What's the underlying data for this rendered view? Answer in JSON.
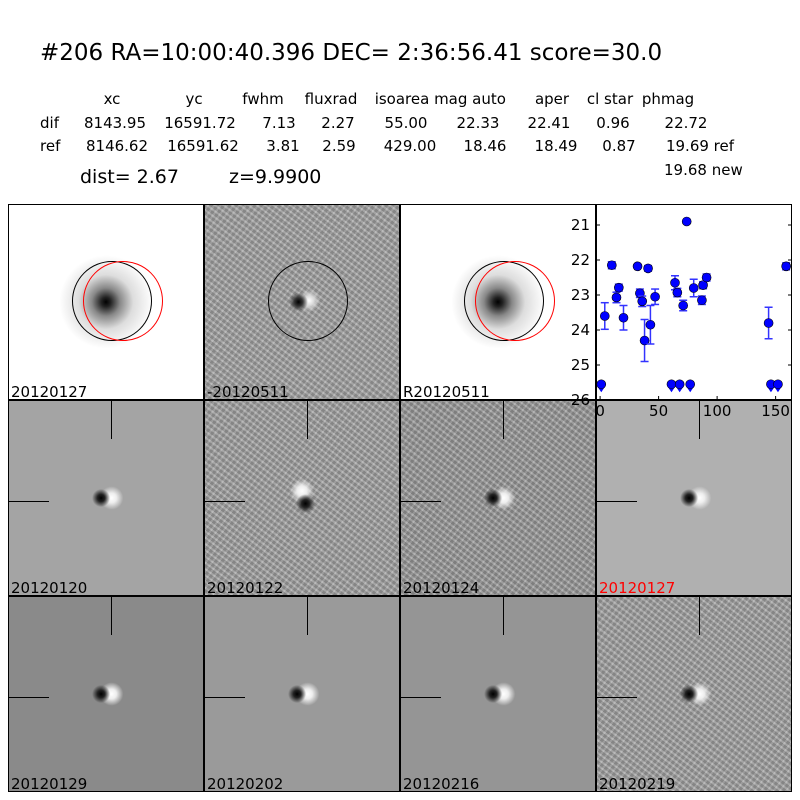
{
  "title": "#206   RA=10:00:40.396 DEC= 2:36:56.41      score=30.0",
  "table": {
    "headers": [
      "xc",
      "yc",
      "fwhm",
      "fluxrad",
      "isoarea",
      "mag auto",
      "aper",
      "cl star",
      "phmag"
    ],
    "rows": [
      {
        "label": "dif",
        "values": [
          "8143.95",
          "16591.72",
          "7.13",
          "2.27",
          "55.00",
          "22.33",
          "22.41",
          "0.96",
          "22.72"
        ]
      },
      {
        "label": "ref",
        "values": [
          "8146.62",
          "16591.62",
          "3.81",
          "2.59",
          "429.00",
          "18.46",
          "18.49",
          "0.87",
          "19.69 ref"
        ]
      }
    ],
    "extra": "19.68 new",
    "dist": "dist=  2.67",
    "z": "z=9.9900"
  },
  "panels": [
    {
      "label": "20120127",
      "color": "#000000"
    },
    {
      "label": "-20120511",
      "color": "#000000"
    },
    {
      "label": "R20120511",
      "color": "#000000"
    },
    {
      "label": "20120120",
      "color": "#000000"
    },
    {
      "label": "20120122",
      "color": "#000000"
    },
    {
      "label": "20120124",
      "color": "#000000"
    },
    {
      "label": "20120127",
      "color": "#ff0000"
    },
    {
      "label": "20120129",
      "color": "#000000"
    },
    {
      "label": "20120202",
      "color": "#000000"
    },
    {
      "label": "20120216",
      "color": "#000000"
    },
    {
      "label": "20120219",
      "color": "#000000"
    }
  ],
  "chart_data": {
    "type": "scatter",
    "xlim": [
      -3.5,
      164
    ],
    "ylim": [
      26,
      20.4
    ],
    "y_inverted": true,
    "xticks": [
      0,
      50,
      100,
      150
    ],
    "yticks": [
      21,
      22,
      23,
      24,
      25,
      26
    ],
    "marker_color": "#0000ff",
    "points": [
      {
        "x": 1,
        "y": 25.55,
        "limit": true
      },
      {
        "x": 4,
        "y": 23.6,
        "err": 0.38
      },
      {
        "x": 10,
        "y": 22.15,
        "err": 0.1
      },
      {
        "x": 14,
        "y": 23.07,
        "err": 0.15
      },
      {
        "x": 16,
        "y": 22.79,
        "err": 0.1
      },
      {
        "x": 20,
        "y": 23.65,
        "err": 0.35
      },
      {
        "x": 32,
        "y": 22.18,
        "err": 0.05
      },
      {
        "x": 34,
        "y": 22.95,
        "err": 0.12
      },
      {
        "x": 36,
        "y": 23.18,
        "err": 0.15
      },
      {
        "x": 38,
        "y": 24.3,
        "err": 0.6
      },
      {
        "x": 41,
        "y": 22.24,
        "err": 0.08
      },
      {
        "x": 43,
        "y": 23.85,
        "err": 0.55
      },
      {
        "x": 47,
        "y": 23.05,
        "err": 0.22
      },
      {
        "x": 61,
        "y": 25.55,
        "limit": true
      },
      {
        "x": 64,
        "y": 22.65,
        "err": 0.2
      },
      {
        "x": 66,
        "y": 22.93,
        "err": 0.12
      },
      {
        "x": 68,
        "y": 25.55,
        "limit": true
      },
      {
        "x": 71,
        "y": 23.3,
        "err": 0.15
      },
      {
        "x": 74,
        "y": 20.9
      },
      {
        "x": 77,
        "y": 25.55,
        "limit": true
      },
      {
        "x": 80,
        "y": 22.8,
        "err": 0.25
      },
      {
        "x": 87,
        "y": 23.15,
        "err": 0.12
      },
      {
        "x": 88,
        "y": 22.72,
        "err": 0.1
      },
      {
        "x": 91,
        "y": 22.5,
        "err": 0.1
      },
      {
        "x": 144,
        "y": 23.8,
        "err": 0.45
      },
      {
        "x": 146,
        "y": 25.55,
        "limit": true
      },
      {
        "x": 152,
        "y": 25.55,
        "limit": true
      },
      {
        "x": 159,
        "y": 22.18,
        "err": 0.1
      }
    ]
  }
}
